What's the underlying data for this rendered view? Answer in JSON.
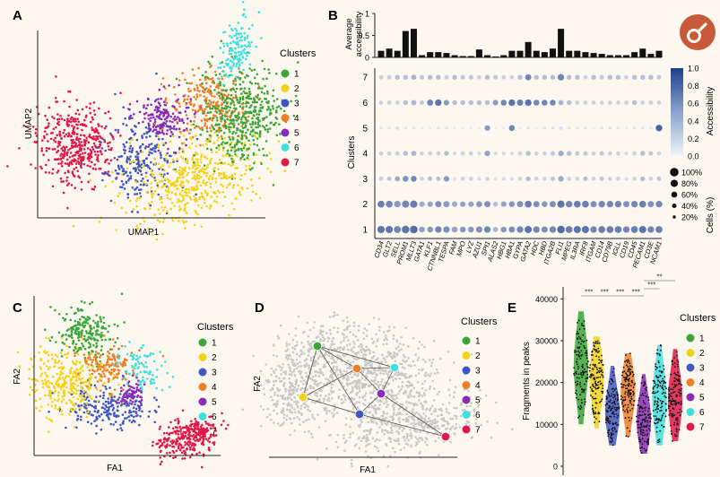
{
  "panels": {
    "A": "A",
    "B": "B",
    "C": "C",
    "D": "D",
    "E": "E"
  },
  "colors": {
    "c1": "#3aa63a",
    "c2": "#f2d31b",
    "c3": "#3f57c2",
    "c4": "#ef7f27",
    "c5": "#8a2ab8",
    "c6": "#3fe0e0",
    "c7": "#e0194a",
    "heat_low": "#f2f4f8",
    "heat_high": "#1f3f8a",
    "background": "#fdf8ef",
    "logo": "#c75a3a"
  },
  "logo_icon": "wrench-icon",
  "cluster_labels": [
    "1",
    "2",
    "3",
    "4",
    "5",
    "6",
    "7"
  ],
  "panelA": {
    "legend_title": "Clusters",
    "xlabel": "UMAP1",
    "ylabel": "UMAP2"
  },
  "panelB": {
    "bar_ylabel_line1": "Average",
    "bar_ylabel_line2": "accessibility",
    "bar_ticks": [
      "1",
      "0.5",
      "0"
    ],
    "ylabel": "Clusters",
    "rows": [
      "7",
      "6",
      "5",
      "4",
      "3",
      "2",
      "1"
    ],
    "colorbar_title": "Accessibility",
    "colorbar_ticks": [
      "1.0",
      "0.8",
      "0.6",
      "0.4",
      "0.2",
      "0.0"
    ],
    "size_title": "Cells (%)",
    "size_ticks": [
      "100%",
      "80%",
      "60%",
      "40%",
      "20%"
    ]
  },
  "panelC": {
    "legend_title": "Clusters",
    "xlabel": "FA1",
    "ylabel": "FA2"
  },
  "panelD": {
    "legend_title": "Clusters",
    "xlabel": "FA1",
    "ylabel": "FA2"
  },
  "panelE": {
    "legend_title": "Clusters",
    "ylabel": "Fragments in peaks",
    "yticks": [
      "40000",
      "30000",
      "20000",
      "10000",
      "0"
    ],
    "significance": [
      "***",
      "***",
      "***",
      "***",
      "***",
      "**"
    ]
  },
  "chart_data": [
    {
      "type": "heatmap",
      "title": "",
      "xlabel": "",
      "ylabel": "Clusters",
      "categories": [
        "CD34",
        "GLT2",
        "SELL",
        "PROM1",
        "MLLT3",
        "GATA1",
        "KLF1",
        "CTNNBL1",
        "TESPA",
        "FAM",
        "MPO",
        "LYZ",
        "AZU1",
        "SPI1",
        "ALAS2",
        "HBG1",
        "HBA1",
        "GYPA",
        "GATA2",
        "HDC",
        "HBD",
        "ITGA2B",
        "FLI1",
        "MPEG",
        "IL3RA",
        "IRF8",
        "ITGAM",
        "CD14",
        "CD79B",
        "IGLL",
        "CD19",
        "CD45",
        "PECAM1",
        "CD3E",
        "NCAM1"
      ],
      "bar_values": [
        0.15,
        0.2,
        0.15,
        0.6,
        0.65,
        0.05,
        0.12,
        0.12,
        0.1,
        0.05,
        0.03,
        0.03,
        0.18,
        0.05,
        0.02,
        0.05,
        0.15,
        0.15,
        0.35,
        0.15,
        0.12,
        0.2,
        0.65,
        0.15,
        0.15,
        0.12,
        0.1,
        0.08,
        0.05,
        0.05,
        0.05,
        0.12,
        0.2,
        0.08,
        0.15
      ],
      "bar_ylim": [
        0,
        1
      ],
      "rows": [
        "1",
        "2",
        "3",
        "4",
        "5",
        "6",
        "7"
      ],
      "accessibility": [
        [
          0.7,
          0.7,
          0.6,
          0.7,
          0.75,
          0.45,
          0.5,
          0.6,
          0.55,
          0.45,
          0.5,
          0.5,
          0.55,
          0.6,
          0.35,
          0.5,
          0.55,
          0.6,
          0.7,
          0.6,
          0.55,
          0.6,
          0.75,
          0.65,
          0.7,
          0.7,
          0.6,
          0.65,
          0.65,
          0.65,
          0.6,
          0.65,
          0.7,
          0.6,
          0.65
        ],
        [
          0.65,
          0.6,
          0.5,
          0.6,
          0.65,
          0.4,
          0.45,
          0.55,
          0.5,
          0.4,
          0.45,
          0.45,
          0.5,
          0.55,
          0.3,
          0.45,
          0.5,
          0.55,
          0.65,
          0.55,
          0.5,
          0.55,
          0.7,
          0.6,
          0.65,
          0.65,
          0.55,
          0.6,
          0.6,
          0.6,
          0.55,
          0.6,
          0.65,
          0.55,
          0.6
        ],
        [
          0.2,
          0.25,
          0.4,
          0.55,
          0.6,
          0.2,
          0.3,
          0.3,
          0.5,
          0.1,
          0.2,
          0.2,
          0.15,
          0.2,
          0.1,
          0.15,
          0.15,
          0.2,
          0.3,
          0.2,
          0.2,
          0.25,
          0.4,
          0.2,
          0.2,
          0.3,
          0.2,
          0.25,
          0.2,
          0.2,
          0.15,
          0.2,
          0.3,
          0.2,
          0.25
        ],
        [
          0.2,
          0.2,
          0.2,
          0.3,
          0.35,
          0.2,
          0.2,
          0.2,
          0.3,
          0.15,
          0.2,
          0.2,
          0.15,
          0.45,
          0.15,
          0.15,
          0.15,
          0.2,
          0.3,
          0.2,
          0.2,
          0.25,
          0.4,
          0.3,
          0.25,
          0.25,
          0.2,
          0.25,
          0.2,
          0.2,
          0.15,
          0.2,
          0.3,
          0.25,
          0.2
        ],
        [
          0.1,
          0.1,
          0.15,
          0.1,
          0.1,
          0.05,
          0.05,
          0.1,
          0.1,
          0.05,
          0.05,
          0.05,
          0.05,
          0.5,
          0.05,
          0.05,
          0.6,
          0.05,
          0.1,
          0.05,
          0.1,
          0.1,
          0.15,
          0.1,
          0.1,
          0.1,
          0.05,
          0.1,
          0.1,
          0.1,
          0.05,
          0.1,
          0.1,
          0.1,
          0.8
        ],
        [
          0.2,
          0.2,
          0.2,
          0.3,
          0.35,
          0.25,
          0.6,
          0.7,
          0.5,
          0.3,
          0.3,
          0.3,
          0.3,
          0.3,
          0.5,
          0.6,
          0.7,
          0.65,
          0.7,
          0.6,
          0.6,
          0.6,
          0.35,
          0.3,
          0.2,
          0.2,
          0.2,
          0.2,
          0.2,
          0.2,
          0.2,
          0.3,
          0.2,
          0.2,
          0.2
        ],
        [
          0.2,
          0.2,
          0.3,
          0.3,
          0.35,
          0.25,
          0.3,
          0.3,
          0.2,
          0.3,
          0.25,
          0.25,
          0.2,
          0.3,
          0.25,
          0.2,
          0.2,
          0.3,
          0.6,
          0.3,
          0.3,
          0.3,
          0.6,
          0.3,
          0.3,
          0.2,
          0.3,
          0.25,
          0.3,
          0.3,
          0.2,
          0.3,
          0.3,
          0.3,
          0.25
        ]
      ],
      "cells_pct": [
        [
          80,
          80,
          75,
          85,
          85,
          60,
          60,
          70,
          70,
          60,
          60,
          60,
          65,
          70,
          50,
          60,
          65,
          70,
          80,
          70,
          65,
          70,
          85,
          75,
          80,
          80,
          70,
          75,
          75,
          75,
          70,
          75,
          80,
          70,
          75
        ],
        [
          75,
          75,
          70,
          80,
          80,
          55,
          55,
          65,
          65,
          55,
          55,
          55,
          60,
          65,
          45,
          55,
          60,
          65,
          75,
          65,
          60,
          65,
          80,
          70,
          75,
          75,
          65,
          70,
          70,
          70,
          65,
          70,
          75,
          65,
          70
        ],
        [
          40,
          40,
          50,
          60,
          60,
          35,
          40,
          40,
          55,
          30,
          35,
          35,
          30,
          35,
          25,
          30,
          30,
          35,
          45,
          35,
          35,
          40,
          55,
          35,
          35,
          40,
          35,
          40,
          35,
          35,
          30,
          35,
          45,
          35,
          40
        ],
        [
          40,
          40,
          40,
          45,
          50,
          35,
          35,
          35,
          45,
          30,
          35,
          35,
          30,
          55,
          30,
          30,
          30,
          35,
          45,
          35,
          35,
          40,
          55,
          45,
          40,
          40,
          35,
          40,
          35,
          35,
          30,
          35,
          45,
          40,
          35
        ],
        [
          20,
          20,
          25,
          20,
          20,
          15,
          15,
          20,
          20,
          15,
          15,
          15,
          15,
          55,
          15,
          15,
          60,
          15,
          20,
          15,
          20,
          20,
          25,
          20,
          20,
          20,
          15,
          20,
          20,
          20,
          15,
          20,
          20,
          20,
          70
        ],
        [
          35,
          35,
          35,
          45,
          50,
          40,
          65,
          70,
          55,
          45,
          45,
          45,
          45,
          45,
          55,
          60,
          70,
          65,
          70,
          60,
          60,
          60,
          50,
          45,
          35,
          35,
          35,
          35,
          35,
          35,
          35,
          45,
          35,
          35,
          35
        ],
        [
          40,
          40,
          45,
          45,
          50,
          40,
          45,
          45,
          40,
          45,
          40,
          40,
          35,
          45,
          40,
          35,
          35,
          45,
          65,
          45,
          45,
          45,
          70,
          45,
          45,
          35,
          45,
          40,
          45,
          45,
          35,
          45,
          45,
          45,
          40
        ]
      ],
      "colorbar_range": [
        0.0,
        1.0
      ]
    },
    {
      "type": "scatter",
      "title": "",
      "xlabel": "",
      "ylabel": "Fragments in peaks",
      "categories": [
        "1",
        "2",
        "3",
        "4",
        "5",
        "6",
        "7"
      ],
      "ylim": [
        0,
        42000
      ],
      "median_values": [
        24000,
        21000,
        13000,
        18000,
        11000,
        16000,
        16000
      ],
      "series": [
        {
          "name": "1",
          "range": [
            10000,
            37000
          ]
        },
        {
          "name": "2",
          "range": [
            9000,
            31000
          ]
        },
        {
          "name": "3",
          "range": [
            5000,
            24000
          ]
        },
        {
          "name": "4",
          "range": [
            7000,
            27000
          ]
        },
        {
          "name": "5",
          "range": [
            3000,
            22000
          ]
        },
        {
          "name": "6",
          "range": [
            5000,
            29000
          ]
        },
        {
          "name": "7",
          "range": [
            6000,
            28000
          ]
        }
      ]
    }
  ]
}
